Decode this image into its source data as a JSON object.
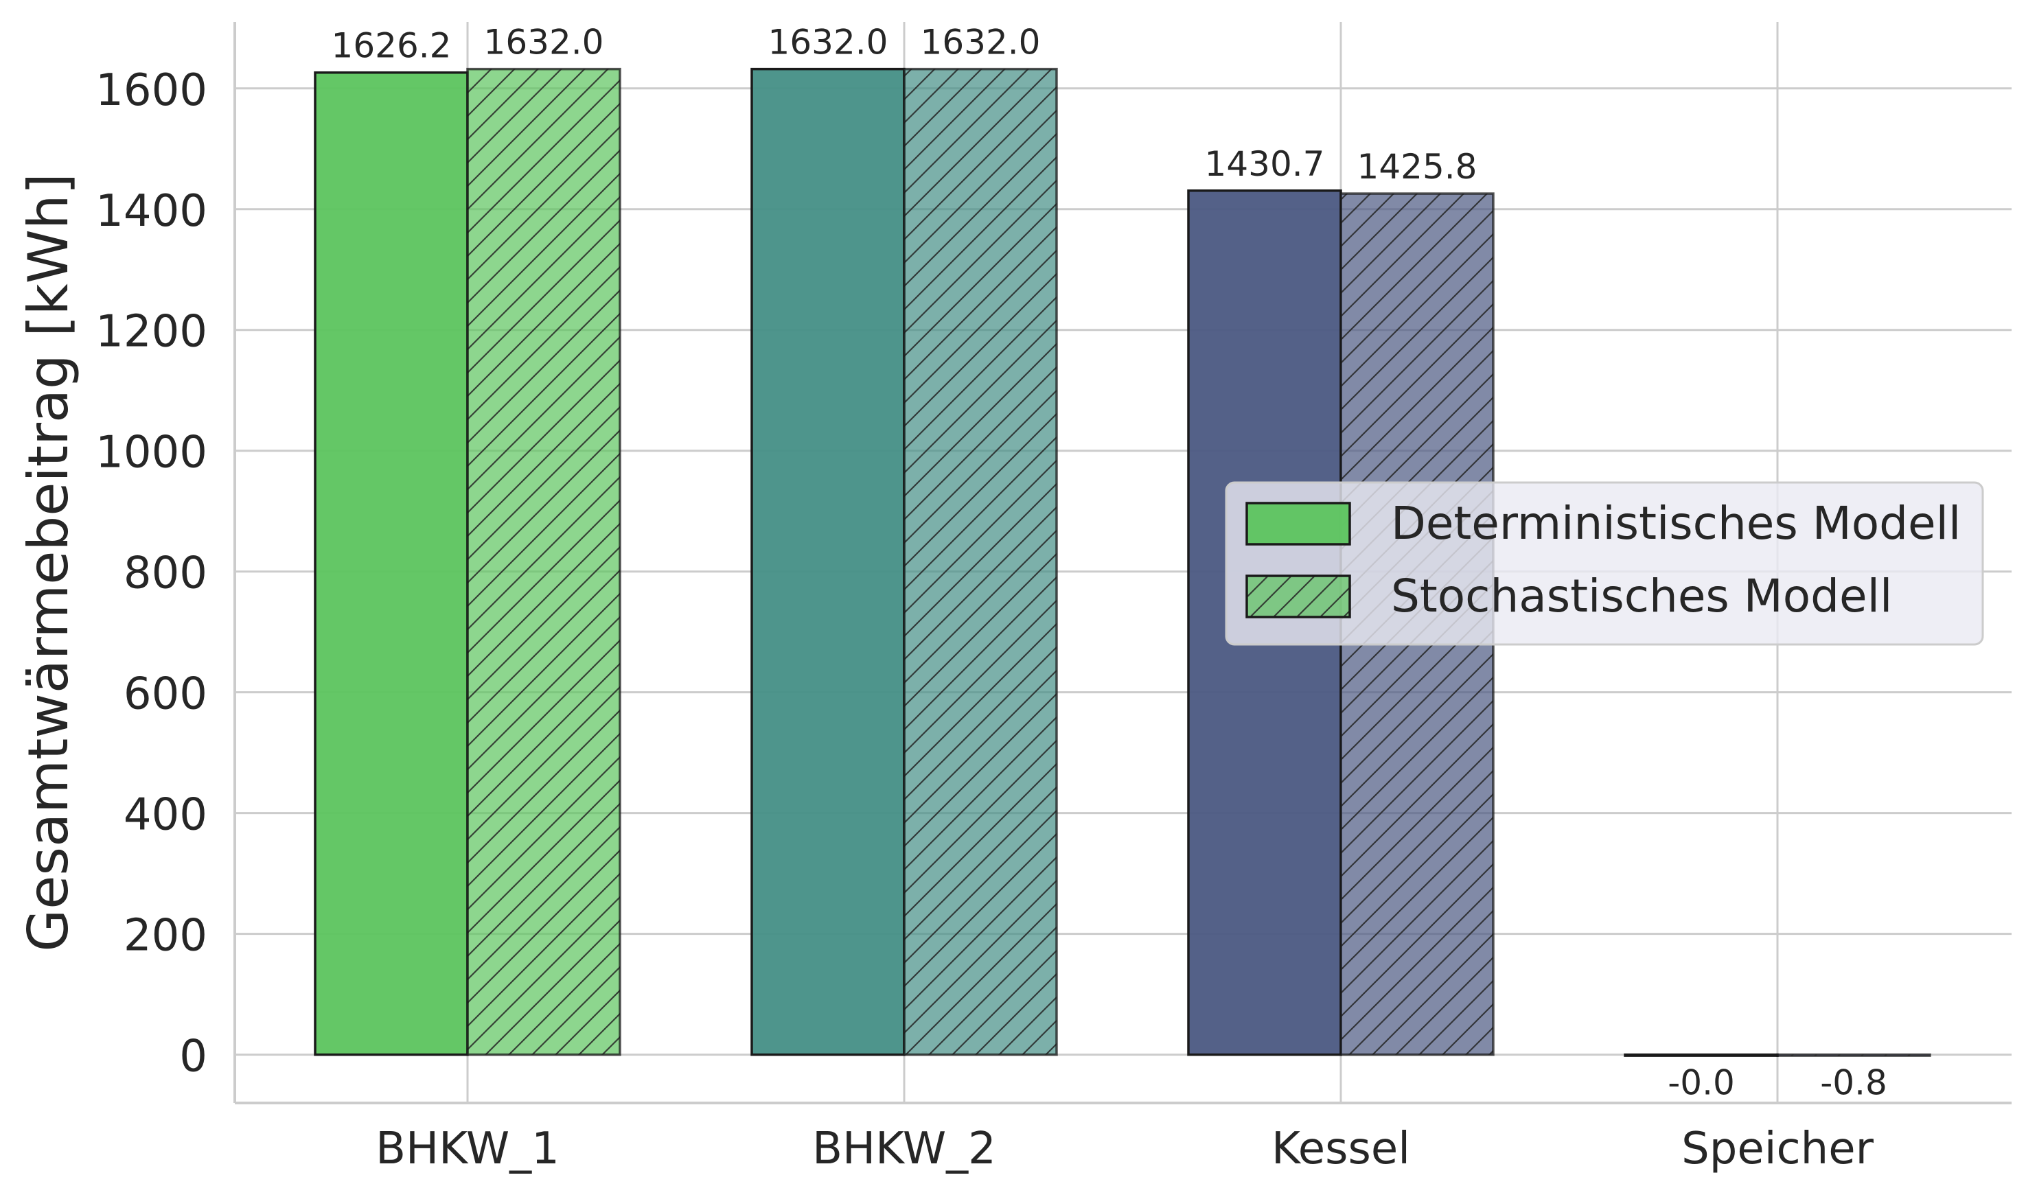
{
  "chart_data": {
    "type": "bar",
    "categories": [
      "BHKW_1",
      "BHKW_2",
      "Kessel",
      "Speicher"
    ],
    "category_colors": [
      "#5cc45e",
      "#448f86",
      "#4b5982",
      "#3a3f6e"
    ],
    "series": [
      {
        "name": "Deterministisches Modell",
        "values": [
          1626.2,
          1632.0,
          1430.7,
          -0.0
        ],
        "value_labels": [
          "1626.2",
          "1632.0",
          "1430.7",
          "-0.0"
        ],
        "hatch": false
      },
      {
        "name": "Stochastisches Modell",
        "values": [
          1632.0,
          1632.0,
          1425.8,
          -0.8
        ],
        "value_labels": [
          "1632.0",
          "1632.0",
          "1425.8",
          "-0.8"
        ],
        "hatch": true
      }
    ],
    "title": "",
    "xlabel": "",
    "ylabel": "Gesamtwärmebeitrag [kWh]",
    "ylim": [
      -80,
      1710
    ],
    "yticks": [
      0,
      200,
      400,
      600,
      800,
      1000,
      1200,
      1400,
      1600
    ],
    "grid": true,
    "legend_position": "center-right"
  }
}
